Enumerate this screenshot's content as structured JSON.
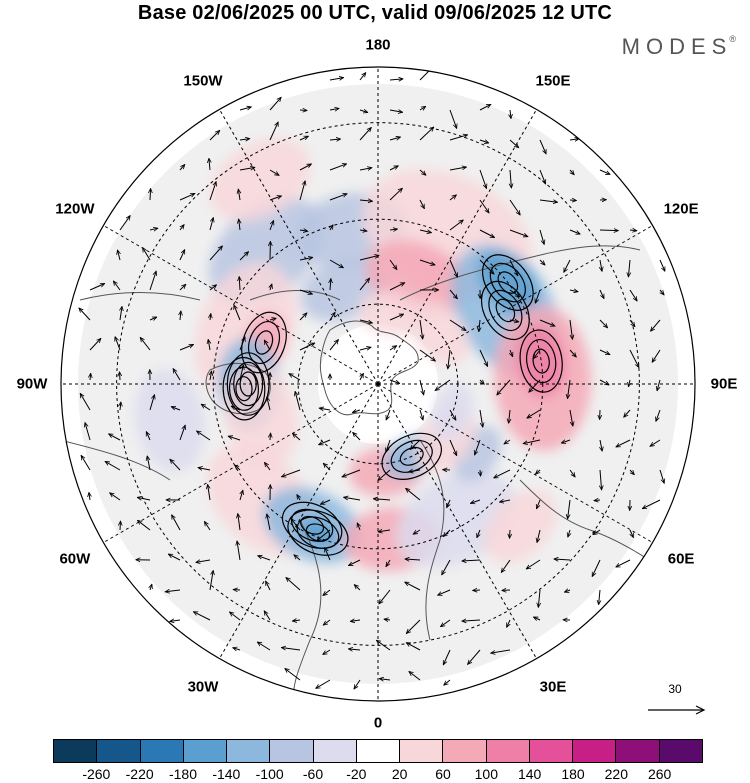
{
  "title": "Base 02/06/2025 00 UTC, valid 09/06/2025 12 UTC",
  "brand": {
    "name": "MODES",
    "mark": "®"
  },
  "longitude_labels": [
    {
      "id": "lon-180",
      "text": "180"
    },
    {
      "id": "lon-150e",
      "text": "150E"
    },
    {
      "id": "lon-120e",
      "text": "120E"
    },
    {
      "id": "lon-90e",
      "text": "90E"
    },
    {
      "id": "lon-60e",
      "text": "60E"
    },
    {
      "id": "lon-30e",
      "text": "30E"
    },
    {
      "id": "lon-0",
      "text": "0"
    },
    {
      "id": "lon-30w",
      "text": "30W"
    },
    {
      "id": "lon-60w",
      "text": "60W"
    },
    {
      "id": "lon-90w",
      "text": "90W"
    },
    {
      "id": "lon-120w",
      "text": "120W"
    },
    {
      "id": "lon-150w",
      "text": "150W"
    }
  ],
  "reference_vector": {
    "value": "30"
  },
  "colorbar": {
    "colors": [
      "#0b3a5a",
      "#15578a",
      "#2a79b5",
      "#5a9fcf",
      "#8db8de",
      "#b8c5e2",
      "#dcdcee",
      "#ffffff",
      "#f8d7da",
      "#f4a9b6",
      "#ef7fa7",
      "#e5509a",
      "#c71f86",
      "#8f0f78",
      "#5a0a6b"
    ],
    "ticks": [
      "-260",
      "-220",
      "-180",
      "-140",
      "-100",
      "-60",
      "-20",
      "20",
      "60",
      "100",
      "140",
      "180",
      "220",
      "260"
    ]
  },
  "anomaly_blobs": [
    {
      "lon": -140,
      "colat": 42,
      "value": -60,
      "r": 16
    },
    {
      "lon": -170,
      "colat": 38,
      "value": -90,
      "r": 14
    },
    {
      "lon": -160,
      "colat": 25,
      "value": -60,
      "r": 12
    },
    {
      "lon": 155,
      "colat": 40,
      "value": 60,
      "r": 22
    },
    {
      "lon": 160,
      "colat": 28,
      "value": 80,
      "r": 14
    },
    {
      "lon": 170,
      "colat": 18,
      "value": 50,
      "r": 9
    },
    {
      "lon": 120,
      "colat": 36,
      "value": -110,
      "r": 18
    },
    {
      "lon": 128,
      "colat": 40,
      "value": -160,
      "r": 9
    },
    {
      "lon": 92,
      "colat": 40,
      "value": 90,
      "r": 18
    },
    {
      "lon": 98,
      "colat": 40,
      "value": 120,
      "r": 9
    },
    {
      "lon": 130,
      "colat": 20,
      "value": 40,
      "r": 10
    },
    {
      "lon": -112,
      "colat": 35,
      "value": 60,
      "r": 18
    },
    {
      "lon": -110,
      "colat": 30,
      "value": 100,
      "r": 8
    },
    {
      "lon": -90,
      "colat": 32,
      "value": -120,
      "r": 12
    },
    {
      "lon": -88,
      "colat": 33,
      "value": -180,
      "r": 6
    },
    {
      "lon": -75,
      "colat": 30,
      "value": 50,
      "r": 14
    },
    {
      "lon": -45,
      "colat": 40,
      "value": 60,
      "r": 16
    },
    {
      "lon": -25,
      "colat": 38,
      "value": -110,
      "r": 13
    },
    {
      "lon": -22,
      "colat": 39,
      "value": -160,
      "r": 5
    },
    {
      "lon": 5,
      "colat": 38,
      "value": 80,
      "r": 12
    },
    {
      "lon": 5,
      "colat": 22,
      "value": 70,
      "r": 10
    },
    {
      "lon": 25,
      "colat": 20,
      "value": -120,
      "r": 8
    },
    {
      "lon": 30,
      "colat": 38,
      "value": -50,
      "r": 16
    },
    {
      "lon": 55,
      "colat": 30,
      "value": -80,
      "r": 8
    },
    {
      "lon": 50,
      "colat": 22,
      "value": 40,
      "r": 10
    },
    {
      "lon": 70,
      "colat": 20,
      "value": -40,
      "r": 8
    },
    {
      "lon": -150,
      "colat": 55,
      "value": 40,
      "r": 12
    },
    {
      "lon": -80,
      "colat": 50,
      "value": -40,
      "r": 12
    },
    {
      "lon": 45,
      "colat": 48,
      "value": 40,
      "r": 10
    }
  ]
}
